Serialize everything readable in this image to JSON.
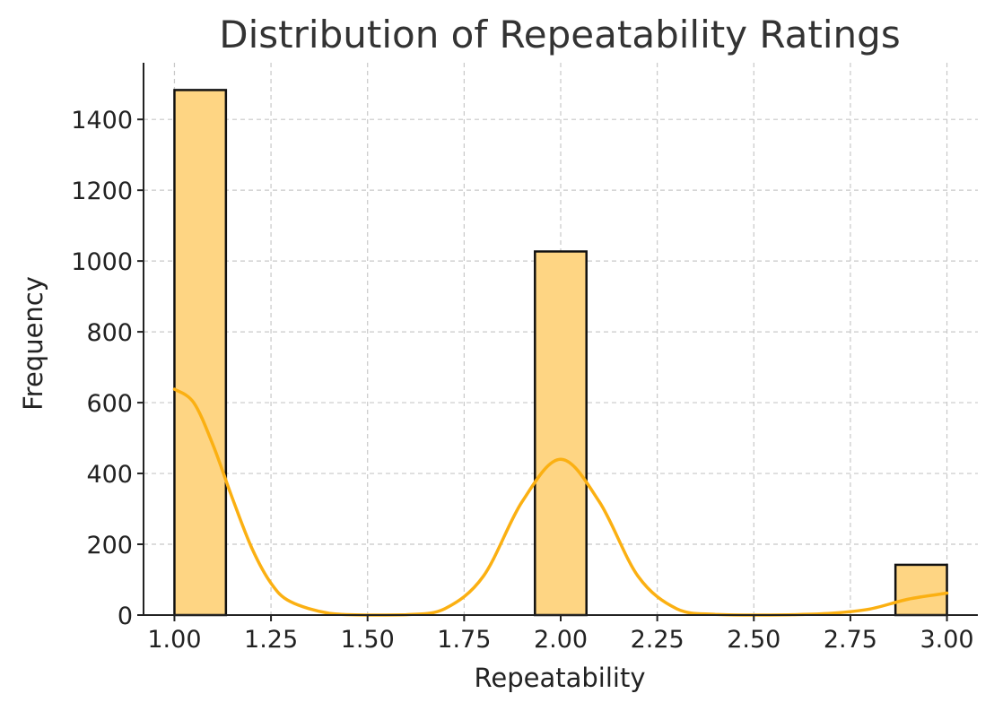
{
  "chart_data": {
    "type": "bar",
    "title": "Distribution of Repeatability Ratings",
    "xlabel": "Repeatability",
    "ylabel": "Frequency",
    "xlim": [
      0.92,
      3.08
    ],
    "ylim": [
      0,
      1560
    ],
    "xticks": [
      1.0,
      1.25,
      1.5,
      1.75,
      2.0,
      2.25,
      2.5,
      2.75,
      3.0
    ],
    "xtick_labels": [
      "1.00",
      "1.25",
      "1.50",
      "1.75",
      "2.00",
      "2.25",
      "2.50",
      "2.75",
      "3.00"
    ],
    "yticks": [
      0,
      200,
      400,
      600,
      800,
      1000,
      1200,
      1400
    ],
    "ytick_labels": [
      "0",
      "200",
      "400",
      "600",
      "800",
      "1000",
      "1200",
      "1400"
    ],
    "grid": true,
    "bin_width": 0.1333,
    "bins": [
      {
        "start": 1.0,
        "end": 1.1333,
        "value": 1483
      },
      {
        "start": 1.9333,
        "end": 2.0667,
        "value": 1027
      },
      {
        "start": 2.8667,
        "end": 3.0,
        "value": 142
      }
    ],
    "kde": {
      "x": [
        1.0,
        1.05,
        1.1,
        1.15,
        1.2,
        1.25,
        1.3,
        1.4,
        1.5,
        1.6,
        1.7,
        1.8,
        1.9,
        2.0,
        2.1,
        2.2,
        2.3,
        2.4,
        2.5,
        2.6,
        2.7,
        2.8,
        2.9,
        3.0
      ],
      "y": [
        638,
        600,
        480,
        330,
        190,
        90,
        38,
        5,
        0,
        1,
        18,
        110,
        320,
        440,
        320,
        110,
        18,
        2,
        0,
        1,
        5,
        17,
        45,
        62
      ]
    },
    "colors": {
      "bar_fill": "#fed583",
      "bar_edge": "#111111",
      "kde_line": "#fbb012"
    }
  }
}
